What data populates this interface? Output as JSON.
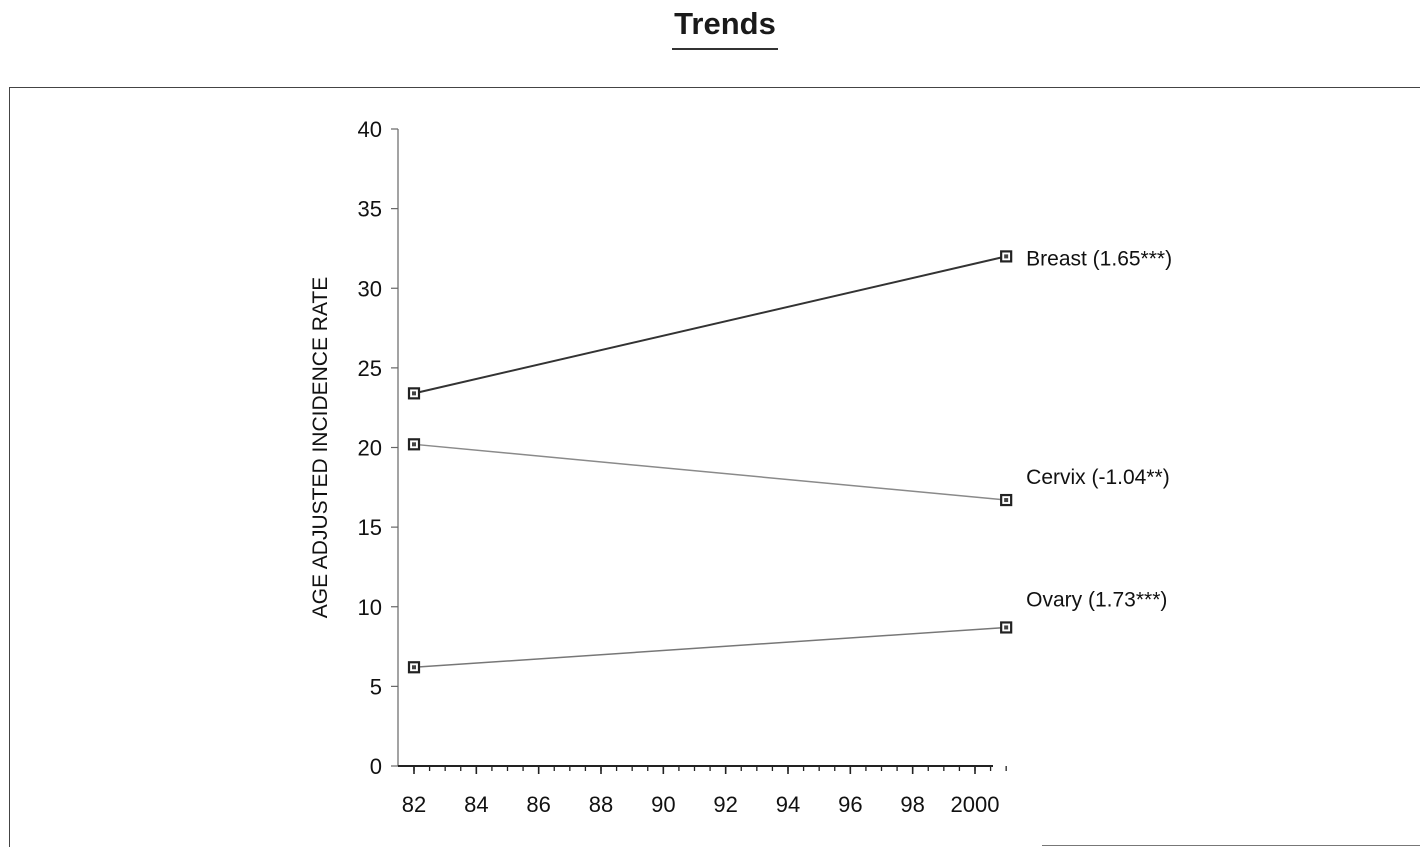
{
  "page_title": "Trends",
  "chart_data": {
    "type": "line",
    "title": "Trends",
    "xlabel": "",
    "ylabel": "AGE ADJUSTED INCIDENCE RATE",
    "xlim": [
      1982,
      2001
    ],
    "ylim": [
      0,
      40
    ],
    "x_ticks": [
      1982,
      1984,
      1986,
      1988,
      1990,
      1992,
      1994,
      1996,
      1998,
      2000
    ],
    "x_tick_labels": [
      "82",
      "84",
      "86",
      "88",
      "90",
      "92",
      "94",
      "96",
      "98",
      "2000"
    ],
    "y_ticks": [
      0,
      5,
      10,
      15,
      20,
      25,
      30,
      35,
      40
    ],
    "y_tick_labels": [
      "0",
      "5",
      "10",
      "15",
      "20",
      "25",
      "30",
      "35",
      "40"
    ],
    "grid": false,
    "legend": "none",
    "series": [
      {
        "name": "Breast (1.65***)",
        "label": "Breast (1.65***)",
        "x": [
          1982,
          2001
        ],
        "y": [
          23.4,
          32.0
        ],
        "color": "#333333",
        "marker": "square"
      },
      {
        "name": "Cervix (-1.04**)",
        "label": "Cervix (-1.04**)",
        "x": [
          1982,
          2001
        ],
        "y": [
          20.2,
          16.7
        ],
        "color": "#8a8a8a",
        "marker": "square"
      },
      {
        "name": "Ovary (1.73***)",
        "label": "Ovary (1.73***)",
        "x": [
          1982,
          2001
        ],
        "y": [
          6.2,
          8.7
        ],
        "color": "#777777",
        "marker": "square"
      }
    ]
  }
}
